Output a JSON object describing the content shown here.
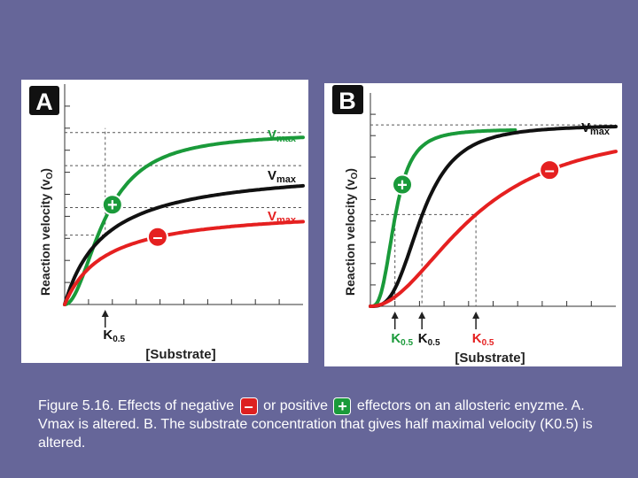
{
  "colors": {
    "background": "#666699",
    "panel": "#ffffff",
    "normal": "#111111",
    "positive": "#1a9a3a",
    "negative": "#e52020",
    "k_label_green": "#1a9a3a",
    "k_label_red": "#e52020"
  },
  "chart_data": [
    {
      "panel": "A",
      "type": "line",
      "xlabel": "[Substrate]",
      "ylabel": "Reaction velocity (v",
      "ylabel_sub": "O",
      "ylabel_end": ")",
      "xlim": [
        0,
        10
      ],
      "ylim": [
        0,
        10
      ],
      "grid": "dashed guide lines",
      "series": [
        {
          "key": "positive",
          "vmax": 7.8,
          "k": 1.7,
          "n": 2
        },
        {
          "key": "normal",
          "vmax": 6.3,
          "k": 1.7,
          "n": 1
        },
        {
          "key": "negative",
          "vmax": 4.4,
          "k": 1.7,
          "n": 1
        }
      ],
      "vmax_labels": [
        {
          "main": "V",
          "sub": "max",
          "color_key": "positive"
        },
        {
          "main": "V",
          "sub": "max",
          "color_key": "normal"
        },
        {
          "main": "V",
          "sub": "max",
          "color_key": "negative"
        }
      ],
      "k_markers": [
        {
          "x": 1.7,
          "main": "K",
          "sub": "0.5",
          "color_key": "normal"
        }
      ],
      "effectors": [
        {
          "symbol": "+",
          "color_key": "positive",
          "x": 2.0
        },
        {
          "symbol": "–",
          "color_key": "negative",
          "x": 3.9
        }
      ]
    },
    {
      "panel": "B",
      "type": "line",
      "xlabel": "[Substrate]",
      "ylabel": "Reaction velocity (v",
      "ylabel_sub": "O",
      "ylabel_end": ")",
      "xlim": [
        0,
        10
      ],
      "ylim": [
        0,
        10
      ],
      "grid": "dashed guide lines",
      "series": [
        {
          "key": "positive",
          "vmax": 8.3,
          "k": 1.0,
          "n": 3
        },
        {
          "key": "normal",
          "vmax": 8.5,
          "k": 2.1,
          "n": 3
        },
        {
          "key": "negative",
          "vmax": 8.6,
          "k": 4.3,
          "n": 2
        }
      ],
      "vmax_labels": [
        {
          "main": "V",
          "sub": "max",
          "color_key": "normal"
        }
      ],
      "k_markers": [
        {
          "x": 1.0,
          "main": "K",
          "sub": "0.5",
          "color_key": "positive"
        },
        {
          "x": 2.1,
          "main": "K",
          "sub": "0.5",
          "color_key": "normal"
        },
        {
          "x": 4.3,
          "main": "K",
          "sub": "0.5",
          "color_key": "negative"
        }
      ],
      "effectors": [
        {
          "symbol": "+",
          "color_key": "positive",
          "x": 1.3
        },
        {
          "symbol": "–",
          "color_key": "negative",
          "x": 7.3
        }
      ]
    }
  ],
  "caption": {
    "part1": "Figure 5.16. Effects of negative",
    "neg_symbol": "–",
    "part2": "or positive",
    "pos_symbol": "+",
    "part3": "effectors on an allosteric enyzme. A. Vmax is altered. B. The substrate concentration that gives half maximal velocity (K0.5) is altered."
  }
}
